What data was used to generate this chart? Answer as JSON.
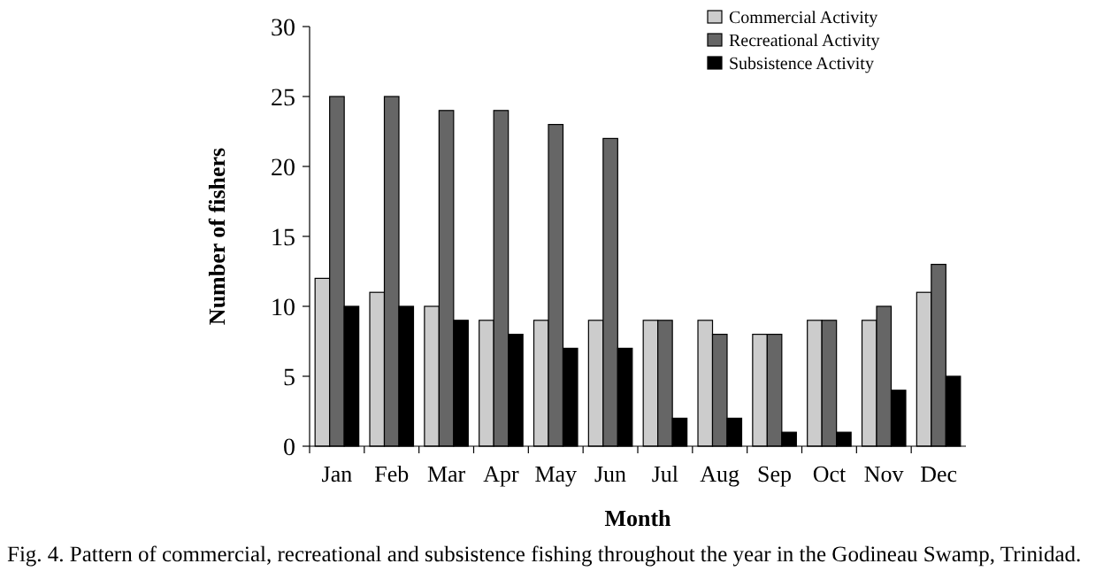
{
  "chart_data": {
    "type": "bar",
    "xlabel": "Month",
    "ylabel": "Number of fishers",
    "categories": [
      "Jan",
      "Feb",
      "Mar",
      "Apr",
      "May",
      "Jun",
      "Jul",
      "Aug",
      "Sep",
      "Oct",
      "Nov",
      "Dec"
    ],
    "series": [
      {
        "name": "Commercial Activity",
        "color": "#cccccc",
        "values": [
          12,
          11,
          10,
          9,
          9,
          9,
          9,
          9,
          8,
          9,
          9,
          11
        ]
      },
      {
        "name": "Recreational Activity",
        "color": "#666666",
        "values": [
          25,
          25,
          24,
          24,
          23,
          22,
          9,
          8,
          8,
          9,
          10,
          13
        ]
      },
      {
        "name": "Subsistence Activity",
        "color": "#000000",
        "values": [
          10,
          10,
          9,
          8,
          7,
          7,
          2,
          2,
          1,
          1,
          4,
          5
        ]
      }
    ],
    "ylim": [
      0,
      30
    ],
    "yticks": [
      0,
      5,
      10,
      15,
      20,
      25,
      30
    ],
    "grid": false,
    "legend": "top right",
    "annotations": [
      "Fig. 4. Pattern of commercial, recreational and subsistence fishing throughout the year in the Godineau Swamp, Trinidad."
    ]
  }
}
